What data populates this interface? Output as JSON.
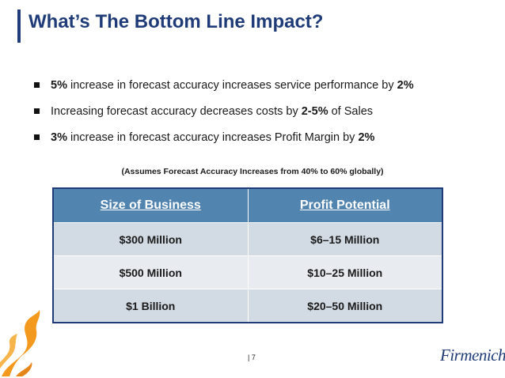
{
  "slide": {
    "title": "What’s The Bottom Line Impact?",
    "bullets": [
      {
        "b1": "5%",
        "t1": " increase in forecast accuracy increases service performance by ",
        "b2": "2%",
        "t2": ""
      },
      {
        "b1": "",
        "t1": "Increasing forecast accuracy decreases costs by ",
        "b2": "2-5%",
        "t2": " of Sales"
      },
      {
        "b1": "3%",
        "t1": " increase in forecast accuracy increases Profit Margin by ",
        "b2": "2%",
        "t2": ""
      }
    ],
    "note": "(Assumes Forecast Accuracy Increases from 40% to 60% globally)",
    "table": {
      "headers": [
        "Size of Business",
        "Profit Potential"
      ],
      "rows": [
        [
          "$300 Million",
          "$6–15 Million"
        ],
        [
          "$500 Million",
          "$10–25 Million"
        ],
        [
          "$1 Billion",
          "$20–50 Million"
        ]
      ]
    },
    "page_number": "| 7",
    "logo_text": "Firmenich"
  },
  "colors": {
    "title": "#1f3c78",
    "table_header": "#5284b0",
    "row_dark": "#d2dae4",
    "row_light": "#e8ecf1",
    "peel": "#f39a1e"
  }
}
